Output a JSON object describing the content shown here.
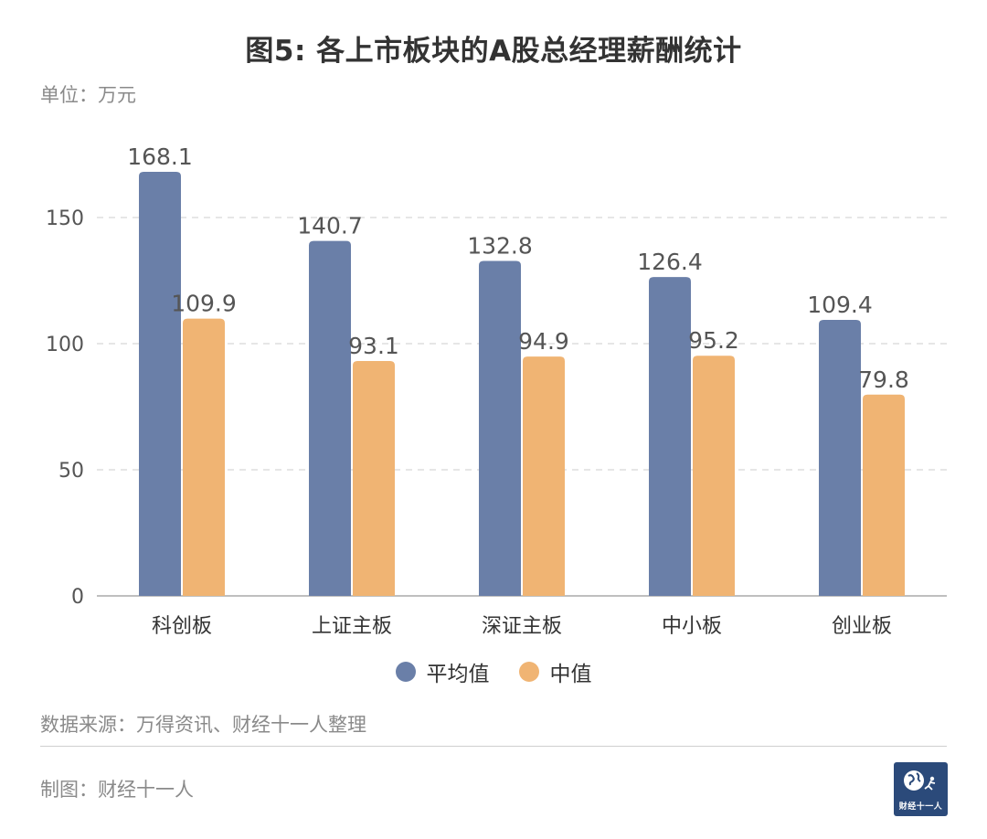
{
  "header": {
    "title": "图5: 各上市板块的A股总经理薪酬统计",
    "unit": "单位：万元"
  },
  "colors": {
    "series_avg": "#6a7fa8",
    "series_median": "#f0b473",
    "grid": "#dddddd",
    "axis": "#aaaaaa",
    "logo_bg": "#2b4a7a"
  },
  "chart_data": {
    "type": "bar",
    "title": "图5: 各上市板块的A股总经理薪酬统计",
    "ylabel": "万元",
    "xlabel": "",
    "ylim": [
      0,
      175
    ],
    "yticks": [
      0,
      50,
      100,
      150
    ],
    "grid": true,
    "legend_position": "bottom",
    "categories": [
      "科创板",
      "上证主板",
      "深证主板",
      "中小板",
      "创业板"
    ],
    "series": [
      {
        "name": "平均值",
        "values": [
          168.1,
          140.7,
          132.8,
          126.4,
          109.4
        ],
        "labels": [
          "168.1",
          "140.7",
          "132.8",
          "126.4",
          "109.4"
        ]
      },
      {
        "name": "中值",
        "values": [
          109.9,
          93.1,
          94.9,
          95.2,
          79.8
        ],
        "labels": [
          "109.9",
          "93.1",
          "94.9",
          "95.2",
          "79.8"
        ]
      }
    ]
  },
  "legend": {
    "avg_label": "平均值",
    "median_label": "中值"
  },
  "footer": {
    "source": "数据来源：万得资讯、财经十一人整理",
    "maker": "制图：财经十一人",
    "logo_text": "财经十一人"
  }
}
